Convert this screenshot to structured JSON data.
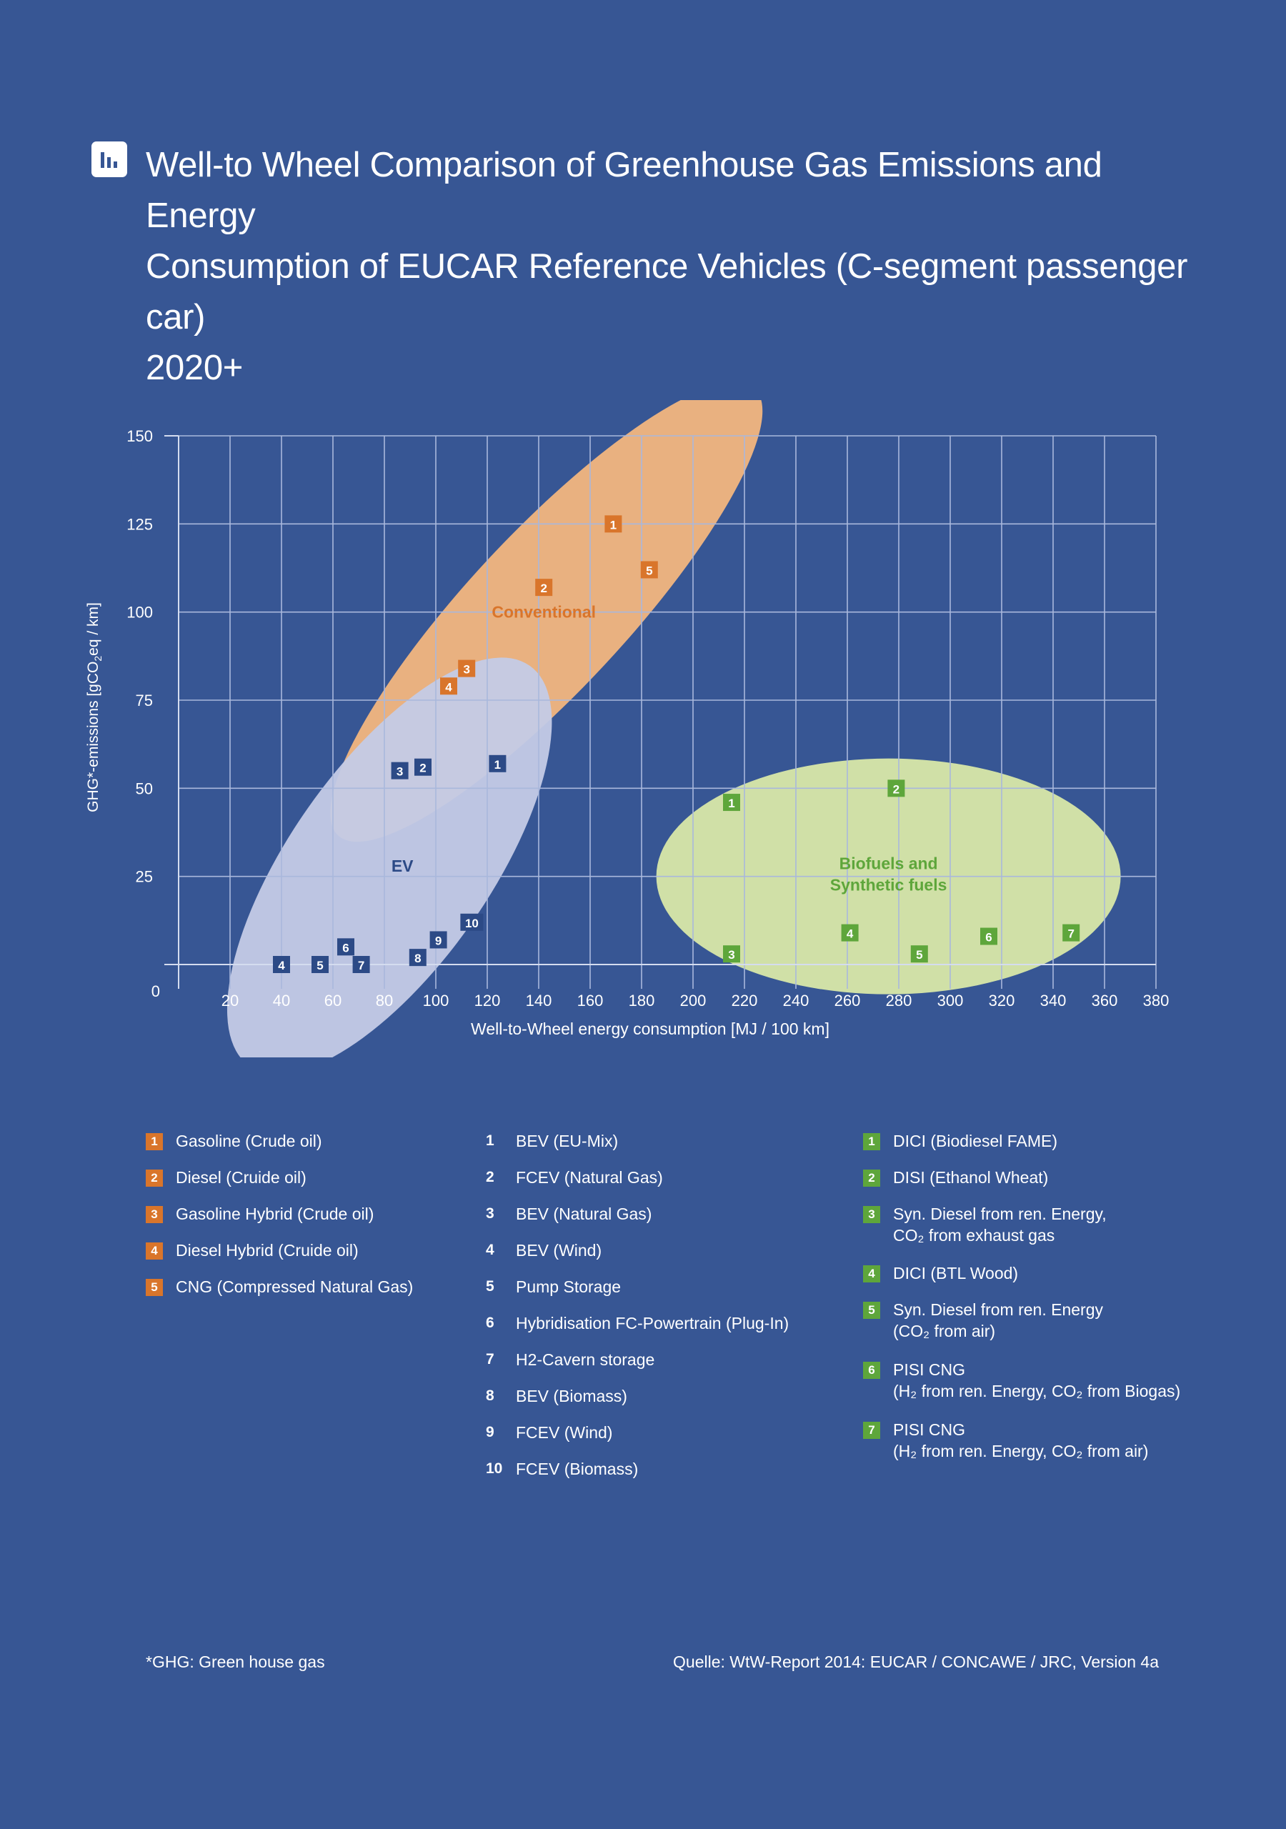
{
  "title": {
    "line1": "Well-to Wheel Comparison of Greenhouse Gas Emissions and Energy",
    "line2": "Consumption of EUCAR Reference Vehicles (C-segment passenger car)",
    "line3": "2020+"
  },
  "title_icon": "bar-chart-icon",
  "colors": {
    "background": "#375694",
    "orange": "#d9752b",
    "green": "#5ea63b",
    "navy": "#2c4a86",
    "conventional_cluster": "#f2b67e",
    "ev_cluster": "#c4cbe6",
    "biofuel_cluster": "#d8e8a8"
  },
  "chart_data": {
    "type": "scatter",
    "xlabel": "Well-to-Wheel energy consumption [MJ / 100 km]",
    "ylabel_parts": [
      "GHG*-emissions [gCO",
      "2",
      "eq / km]"
    ],
    "xlim": [
      0,
      380
    ],
    "ylim": [
      0,
      150
    ],
    "x_ticks": [
      "20",
      "40",
      "60",
      "80",
      "100",
      "120",
      "140",
      "160",
      "180",
      "200",
      "220",
      "240",
      "260",
      "280",
      "300",
      "320",
      "340",
      "360",
      "380"
    ],
    "y_ticks": [
      "150",
      "125",
      "100",
      "75",
      "50",
      "25",
      "0"
    ],
    "grid": true,
    "clusters": [
      {
        "label": "Conventional",
        "color": "orange",
        "cx": 143,
        "cy": 100,
        "rx": 57,
        "ry": 28,
        "rotation": -47
      },
      {
        "label": "EV",
        "color": "navy",
        "cx": 82,
        "cy": 28,
        "rx": 57,
        "ry": 33,
        "rotation": -55
      },
      {
        "label_lines": [
          "Biofuels and",
          "Synthetic fuels"
        ],
        "color": "green",
        "cx": 276,
        "cy": 25,
        "rx": 90,
        "ry": 35,
        "rotation": 0
      }
    ],
    "series": [
      {
        "group": "Conventional",
        "color": "orange",
        "points": [
          {
            "label": "1",
            "x": 169,
            "y": 125
          },
          {
            "label": "2",
            "x": 142,
            "y": 107
          },
          {
            "label": "3",
            "x": 112,
            "y": 84
          },
          {
            "label": "4",
            "x": 105,
            "y": 79
          },
          {
            "label": "5",
            "x": 183,
            "y": 112
          }
        ]
      },
      {
        "group": "EV",
        "color": "navy",
        "points": [
          {
            "label": "1",
            "x": 124,
            "y": 57
          },
          {
            "label": "2",
            "x": 95,
            "y": 56
          },
          {
            "label": "3",
            "x": 86,
            "y": 55
          },
          {
            "label": "4",
            "x": 40,
            "y": 0
          },
          {
            "label": "5",
            "x": 55,
            "y": 0
          },
          {
            "label": "6",
            "x": 65,
            "y": 5
          },
          {
            "label": "7",
            "x": 71,
            "y": 0
          },
          {
            "label": "8",
            "x": 93,
            "y": 2
          },
          {
            "label": "9",
            "x": 101,
            "y": 7
          },
          {
            "label": "10",
            "x": 114,
            "y": 12
          }
        ]
      },
      {
        "group": "Biofuels and Synthetic fuels",
        "color": "green",
        "points": [
          {
            "label": "1",
            "x": 215,
            "y": 46
          },
          {
            "label": "2",
            "x": 279,
            "y": 50
          },
          {
            "label": "3",
            "x": 215,
            "y": 3
          },
          {
            "label": "4",
            "x": 261,
            "y": 9
          },
          {
            "label": "5",
            "x": 288,
            "y": 3
          },
          {
            "label": "6",
            "x": 315,
            "y": 8
          },
          {
            "label": "7",
            "x": 347,
            "y": 9
          }
        ]
      }
    ]
  },
  "legend": {
    "conventional": [
      {
        "num": "1",
        "text": "Gasoline (Crude oil)"
      },
      {
        "num": "2",
        "text": "Diesel (Cruide oil)"
      },
      {
        "num": "3",
        "text": "Gasoline Hybrid (Crude oil)"
      },
      {
        "num": "4",
        "text": "Diesel Hybrid (Cruide oil)"
      },
      {
        "num": "5",
        "text": "CNG (Compressed Natural Gas)"
      }
    ],
    "ev": [
      {
        "num": "1",
        "text": "BEV (EU-Mix)"
      },
      {
        "num": "2",
        "text": "FCEV (Natural Gas)"
      },
      {
        "num": "3",
        "text": "BEV (Natural Gas)"
      },
      {
        "num": "4",
        "text": "BEV (Wind)"
      },
      {
        "num": "5",
        "text": "Pump Storage"
      },
      {
        "num": "6",
        "text": "Hybridisation FC-Powertrain (Plug-In)"
      },
      {
        "num": "7",
        "text": "H2-Cavern storage"
      },
      {
        "num": "8",
        "text": "BEV (Biomass)"
      },
      {
        "num": "9",
        "text": "FCEV (Wind)"
      },
      {
        "num": "10",
        "text": "FCEV (Biomass)"
      }
    ],
    "biofuels": [
      {
        "num": "1",
        "text": "DICI (Biodiesel FAME)"
      },
      {
        "num": "2",
        "text": "DISI (Ethanol Wheat)"
      },
      {
        "num": "3",
        "text": "Syn. Diesel from ren. Energy,",
        "text2": "CO₂ from exhaust gas"
      },
      {
        "num": "4",
        "text": "DICI (BTL Wood)"
      },
      {
        "num": "5",
        "text": "Syn. Diesel from ren. Energy",
        "text2": "(CO₂ from air)"
      },
      {
        "num": "6",
        "text": "PISI CNG",
        "text2": "(H₂ from ren. Energy, CO₂ from Biogas)"
      },
      {
        "num": "7",
        "text": "PISI CNG",
        "text2": "(H₂ from ren. Energy, CO₂ from air)"
      }
    ]
  },
  "footnote": "*GHG: Green house gas",
  "source": "Quelle: WtW-Report 2014: EUCAR / CONCAWE / JRC, Version 4a"
}
